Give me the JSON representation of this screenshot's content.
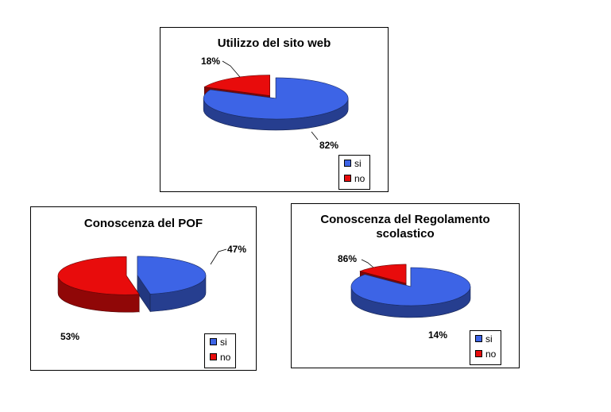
{
  "colors": {
    "si": "#3D64E6",
    "no": "#E80C0C"
  },
  "chart_data": [
    {
      "type": "pie",
      "title": "Utilizzo del sito web",
      "categories": [
        "si",
        "no"
      ],
      "values": [
        82,
        18
      ],
      "labels": [
        "82%",
        "18%"
      ],
      "legend": {
        "position": "bottom-right",
        "entries": [
          "si",
          "no"
        ]
      }
    },
    {
      "type": "pie",
      "title": "Conoscenza del POF",
      "categories": [
        "si",
        "no"
      ],
      "values": [
        47,
        53
      ],
      "labels": [
        "47%",
        "53%"
      ],
      "legend": {
        "position": "bottom-right",
        "entries": [
          "si",
          "no"
        ]
      }
    },
    {
      "type": "pie",
      "title": "Conoscenza  del Regolamento scolastico",
      "title_lines": [
        "Conoscenza  del Regolamento",
        "scolastico"
      ],
      "categories": [
        "si",
        "no"
      ],
      "values": [
        86,
        14
      ],
      "labels": [
        "86%",
        "14%"
      ],
      "legend": {
        "position": "bottom-right",
        "entries": [
          "si",
          "no"
        ]
      }
    }
  ]
}
